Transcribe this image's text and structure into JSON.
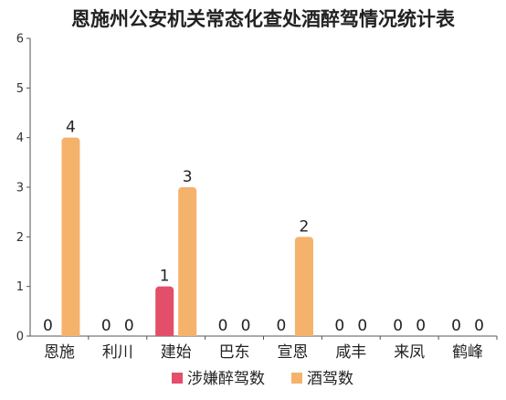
{
  "chart_data": {
    "type": "bar",
    "title": "恩施州公安机关常态化查处酒醉驾情况统计表",
    "categories": [
      "恩施",
      "利川",
      "建始",
      "巴东",
      "宣恩",
      "咸丰",
      "来凤",
      "鹤峰"
    ],
    "series": [
      {
        "name": "涉嫌醉驾数",
        "color": "#e34e6b",
        "values": [
          0,
          0,
          1,
          0,
          0,
          0,
          0,
          0
        ]
      },
      {
        "name": "酒驾数",
        "color": "#f5b26b",
        "values": [
          4,
          0,
          3,
          0,
          2,
          0,
          0,
          0
        ]
      }
    ],
    "ylim": [
      0,
      6
    ],
    "yticks": [
      0,
      1,
      2,
      3,
      4,
      5,
      6
    ],
    "grid": false,
    "legend": "bottom",
    "data_labels": true
  }
}
